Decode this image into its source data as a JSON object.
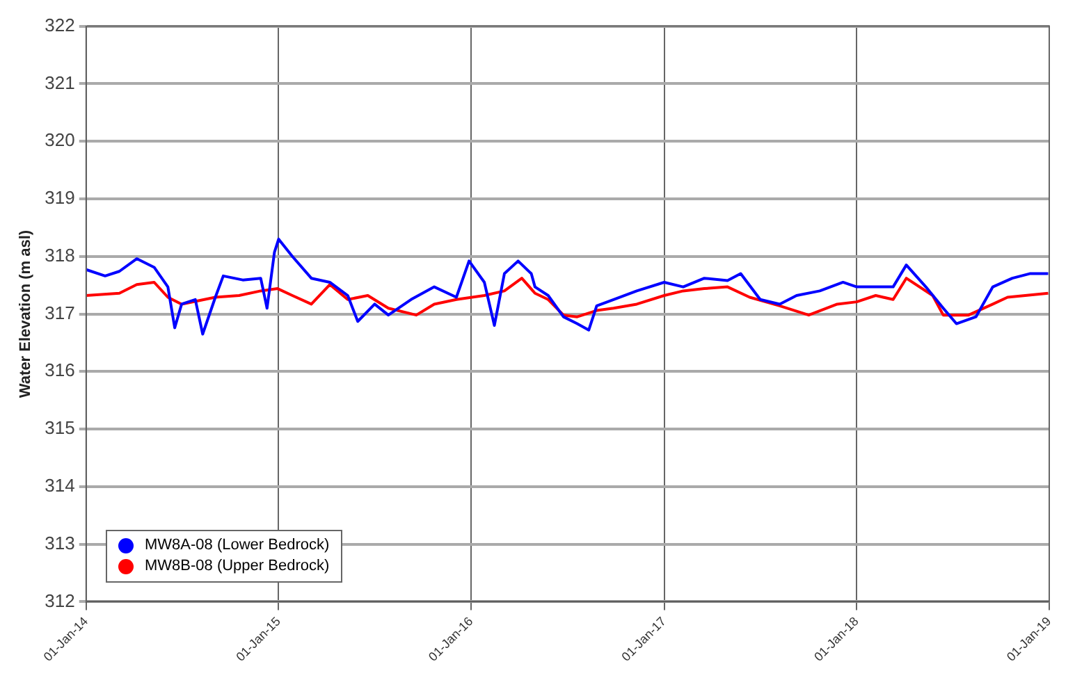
{
  "chart_data": {
    "type": "line",
    "ylabel": "Water Elevation (m asl)",
    "xlim": [
      "2014-01-01",
      "2019-01-01"
    ],
    "xticks": [
      {
        "value": "2014-01-01",
        "label": "01-Jan-14"
      },
      {
        "value": "2015-01-01",
        "label": "01-Jan-15"
      },
      {
        "value": "2016-01-01",
        "label": "01-Jan-16"
      },
      {
        "value": "2017-01-01",
        "label": "01-Jan-17"
      },
      {
        "value": "2018-01-01",
        "label": "01-Jan-18"
      },
      {
        "value": "2019-01-01",
        "label": "01-Jan-19"
      }
    ],
    "ylim": [
      312,
      322
    ],
    "yticks": [
      312,
      313,
      314,
      315,
      316,
      317,
      318,
      319,
      320,
      321,
      322
    ],
    "grid": true,
    "legend": "bottom left",
    "marker": "none",
    "line_style": "solid",
    "series": [
      {
        "name": "MW8A-08 (Lower Bedrock)",
        "color": "#0000ff",
        "x": [
          "2014-01-01",
          "2014-02-06",
          "2014-03-05",
          "2014-04-07",
          "2014-05-10",
          "2014-06-05",
          "2014-06-18",
          "2014-07-01",
          "2014-07-27",
          "2014-08-10",
          "2014-09-03",
          "2014-09-18",
          "2014-10-25",
          "2014-11-28",
          "2014-12-10",
          "2014-12-24",
          "2015-01-01",
          "2015-01-27",
          "2015-03-04",
          "2015-04-08",
          "2015-05-12",
          "2015-05-31",
          "2015-07-02",
          "2015-07-28",
          "2015-09-09",
          "2015-10-23",
          "2015-12-04",
          "2015-12-28",
          "2016-01-26",
          "2016-02-14",
          "2016-03-04",
          "2016-03-30",
          "2016-04-24",
          "2016-05-01",
          "2016-05-26",
          "2016-06-24",
          "2016-07-20",
          "2016-08-11",
          "2016-08-26",
          "2016-09-27",
          "2016-11-10",
          "2017-01-01",
          "2017-02-06",
          "2017-03-18",
          "2017-05-01",
          "2017-05-26",
          "2017-07-02",
          "2017-08-08",
          "2017-09-09",
          "2017-10-23",
          "2017-12-06",
          "2018-01-01",
          "2018-02-06",
          "2018-03-11",
          "2018-04-05",
          "2018-05-12",
          "2018-06-14",
          "2018-07-09",
          "2018-08-15",
          "2018-09-16",
          "2018-10-23",
          "2018-11-25",
          "2018-12-30"
        ],
        "values": [
          317.77,
          317.66,
          317.74,
          317.96,
          317.81,
          317.47,
          316.76,
          317.17,
          317.25,
          316.65,
          317.29,
          317.66,
          317.59,
          317.62,
          317.1,
          318.07,
          318.3,
          318.0,
          317.62,
          317.55,
          317.32,
          316.87,
          317.17,
          316.98,
          317.25,
          317.47,
          317.29,
          317.92,
          317.55,
          316.8,
          317.7,
          317.92,
          317.7,
          317.47,
          317.32,
          316.95,
          316.83,
          316.72,
          317.14,
          317.25,
          317.4,
          317.55,
          317.47,
          317.62,
          317.58,
          317.7,
          317.25,
          317.17,
          317.32,
          317.4,
          317.55,
          317.47,
          317.47,
          317.47,
          317.85,
          317.47,
          317.1,
          316.83,
          316.95,
          317.47,
          317.62,
          317.7,
          317.7
        ]
      },
      {
        "name": "MW8B-08 (Upper Bedrock)",
        "color": "#ff0000",
        "x": [
          "2014-01-01",
          "2014-03-05",
          "2014-04-07",
          "2014-05-10",
          "2014-06-05",
          "2014-07-01",
          "2014-09-03",
          "2014-10-18",
          "2014-11-28",
          "2014-12-30",
          "2015-01-27",
          "2015-03-04",
          "2015-04-08",
          "2015-05-12",
          "2015-06-19",
          "2015-07-28",
          "2015-09-19",
          "2015-10-23",
          "2015-12-04",
          "2016-01-26",
          "2016-03-04",
          "2016-04-06",
          "2016-05-01",
          "2016-05-26",
          "2016-06-24",
          "2016-07-20",
          "2016-08-26",
          "2016-09-27",
          "2016-11-10",
          "2017-01-01",
          "2017-02-06",
          "2017-03-18",
          "2017-05-01",
          "2017-06-12",
          "2017-08-08",
          "2017-10-02",
          "2017-11-25",
          "2018-01-01",
          "2018-02-06",
          "2018-03-11",
          "2018-04-05",
          "2018-05-25",
          "2018-06-14",
          "2018-08-01",
          "2018-09-16",
          "2018-10-14",
          "2018-12-30"
        ],
        "values": [
          317.32,
          317.36,
          317.51,
          317.55,
          317.29,
          317.17,
          317.29,
          317.32,
          317.4,
          317.44,
          317.32,
          317.17,
          317.51,
          317.25,
          317.32,
          317.1,
          316.98,
          317.17,
          317.25,
          317.32,
          317.4,
          317.62,
          317.36,
          317.25,
          316.98,
          316.95,
          317.06,
          317.1,
          317.17,
          317.32,
          317.4,
          317.44,
          317.47,
          317.29,
          317.14,
          316.98,
          317.17,
          317.21,
          317.32,
          317.25,
          317.62,
          317.32,
          316.98,
          316.98,
          317.17,
          317.29,
          317.36
        ]
      }
    ]
  }
}
